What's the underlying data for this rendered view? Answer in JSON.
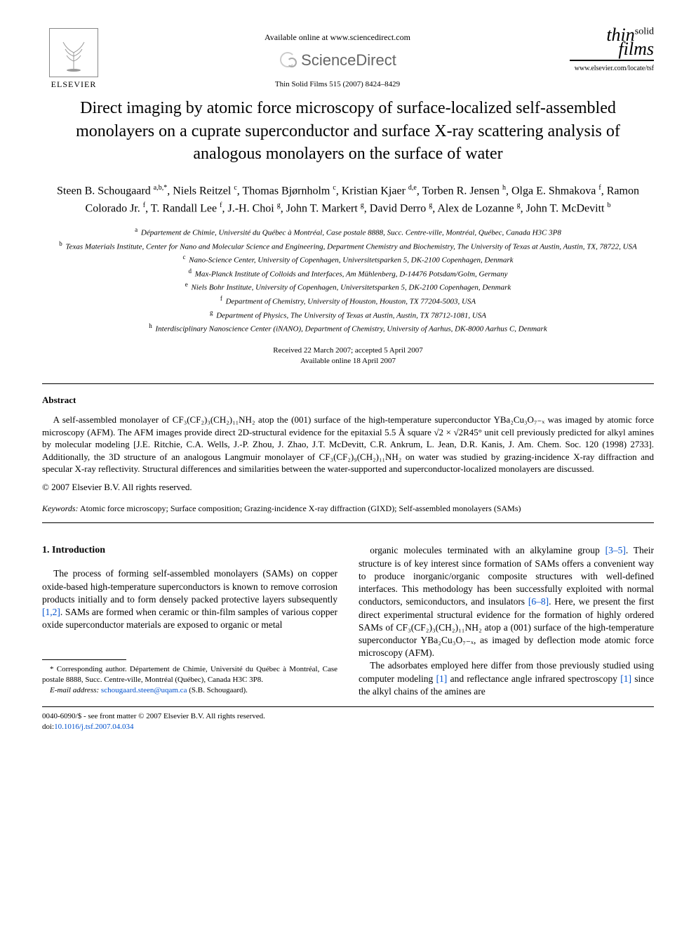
{
  "header": {
    "publisher_label": "ELSEVIER",
    "available_text": "Available online at www.sciencedirect.com",
    "sd_brand": "ScienceDirect",
    "journal_ref": "Thin Solid Films 515 (2007) 8424–8429",
    "tsf_line1": "thin",
    "tsf_line2": "films",
    "tsf_solid": "solid",
    "journal_url": "www.elsevier.com/locate/tsf"
  },
  "title": "Direct imaging by atomic force microscopy of surface-localized self-assembled monolayers on a cuprate superconductor and surface X-ray scattering analysis of analogous monolayers on the surface of water",
  "authors_html": "Steen B. Schougaard <sup>a,b,*</sup>, Niels Reitzel <sup>c</sup>, Thomas Bjørnholm <sup>c</sup>, Kristian Kjaer <sup>d,e</sup>, Torben R. Jensen <sup>h</sup>, Olga E. Shmakova <sup>f</sup>, Ramon Colorado Jr. <sup>f</sup>, T. Randall Lee <sup>f</sup>, J.-H. Choi <sup>g</sup>, John T. Markert <sup>g</sup>, David Derro <sup>g</sup>, Alex de Lozanne <sup>g</sup>, John T. McDevitt <sup>b</sup>",
  "affiliations": [
    {
      "sup": "a",
      "text": "Département de Chimie, Université du Québec à Montréal, Case postale 8888, Succ. Centre-ville, Montréal, Québec, Canada H3C 3P8"
    },
    {
      "sup": "b",
      "text": "Texas Materials Institute, Center for Nano and Molecular Science and Engineering, Department Chemistry and Biochemistry, The University of Texas at Austin, Austin, TX, 78722, USA"
    },
    {
      "sup": "c",
      "text": "Nano-Science Center, University of Copenhagen, Universitetsparken 5, DK-2100 Copenhagen, Denmark"
    },
    {
      "sup": "d",
      "text": "Max-Planck Institute of Colloids and Interfaces, Am Mühlenberg, D-14476 Potsdam/Golm, Germany"
    },
    {
      "sup": "e",
      "text": "Niels Bohr Institute, University of Copenhagen, Universitetsparken 5, DK-2100 Copenhagen, Denmark"
    },
    {
      "sup": "f",
      "text": "Department of Chemistry, University of Houston, Houston, TX 77204-5003, USA"
    },
    {
      "sup": "g",
      "text": "Department of Physics, The University of Texas at Austin, Austin, TX 78712-1081, USA"
    },
    {
      "sup": "h",
      "text": "Interdisciplinary Nanoscience Center (iNANO), Department of Chemistry, University of Aarhus, DK-8000 Aarhus C, Denmark"
    }
  ],
  "dates": {
    "received": "Received 22 March 2007; accepted 5 April 2007",
    "online": "Available online 18 April 2007"
  },
  "abstract": {
    "heading": "Abstract",
    "body": "A self-assembled monolayer of CF₃(CF₂)₃(CH₂)₁₁NH₂ atop the (001) surface of the high-temperature superconductor YBa₂Cu₃O₇₋ₓ was imaged by atomic force microscopy (AFM). The AFM images provide direct 2D-structural evidence for the epitaxial 5.5 Å square √2 × √2R45° unit cell previously predicted for alkyl amines by molecular modeling [J.E. Ritchie, C.A. Wells, J.-P. Zhou, J. Zhao, J.T. McDevitt, C.R. Ankrum, L. Jean, D.R. Kanis, J. Am. Chem. Soc. 120 (1998) 2733]. Additionally, the 3D structure of an analogous Langmuir monolayer of CF₃(CF₂)₉(CH₂)₁₁NH₂ on water was studied by grazing-incidence X-ray diffraction and specular X-ray reflectivity. Structural differences and similarities between the water-supported and superconductor-localized monolayers are discussed.",
    "copyright": "© 2007 Elsevier B.V. All rights reserved."
  },
  "keywords": {
    "label": "Keywords:",
    "text": " Atomic force microscopy; Surface composition; Grazing-incidence X-ray diffraction (GIXD); Self-assembled monolayers (SAMs)"
  },
  "body": {
    "section_heading": "1. Introduction",
    "col1_p1_a": "The process of forming self-assembled monolayers (SAMs) on copper oxide-based high-temperature superconductors is known to remove corrosion products initially and to form densely packed protective layers subsequently ",
    "col1_link1": "[1,2]",
    "col1_p1_b": ". SAMs are formed when ceramic or thin-film samples of various copper oxide superconductor materials are exposed to organic or metal",
    "col2_p1_a": "organic molecules terminated with an alkylamine group ",
    "col2_link1": "[3–5]",
    "col2_p1_b": ". Their structure is of key interest since formation of SAMs offers a convenient way to produce inorganic/organic composite structures with well-defined interfaces. This methodology has been successfully exploited with normal conductors, semicon­ductors, and insulators ",
    "col2_link2": "[6–8]",
    "col2_p1_c": ". Here, we present the first direct experimental structural evidence for the formation of highly ordered SAMs of CF₃(CF₂)₃(CH₂)₁₁NH₂ atop a (001) surface of the high-temperature superconductor YBa₂Cu₃O₇₋ₓ, as imaged by deflection mode atomic force microscopy (AFM).",
    "col2_p2_a": "The adsorbates employed here differ from those previously studied using computer modeling ",
    "col2_link3": "[1]",
    "col2_p2_b": " and reflectance angle infrared spectroscopy ",
    "col2_link4": "[1]",
    "col2_p2_c": " since the alkyl chains of the amines are"
  },
  "footnote": {
    "corr": "* Corresponding author. Département de Chimie, Université du Québec à Montréal, Case postale 8888, Succ. Centre-ville, Montréal (Québec), Canada H3C 3P8.",
    "email_label": "E-mail address:",
    "email": "schougaard.steen@uqam.ca",
    "email_suffix": " (S.B. Schougaard)."
  },
  "footer": {
    "issn": "0040-6090/$ - see front matter © 2007 Elsevier B.V. All rights reserved.",
    "doi_label": "doi:",
    "doi": "10.1016/j.tsf.2007.04.034"
  },
  "colors": {
    "link": "#0050cc",
    "text": "#000000",
    "bg": "#ffffff",
    "rule": "#000000"
  },
  "typography": {
    "title_pt": 24,
    "author_pt": 16,
    "affil_pt": 11,
    "body_pt": 13.5,
    "abstract_pt": 13,
    "footnote_pt": 11
  }
}
